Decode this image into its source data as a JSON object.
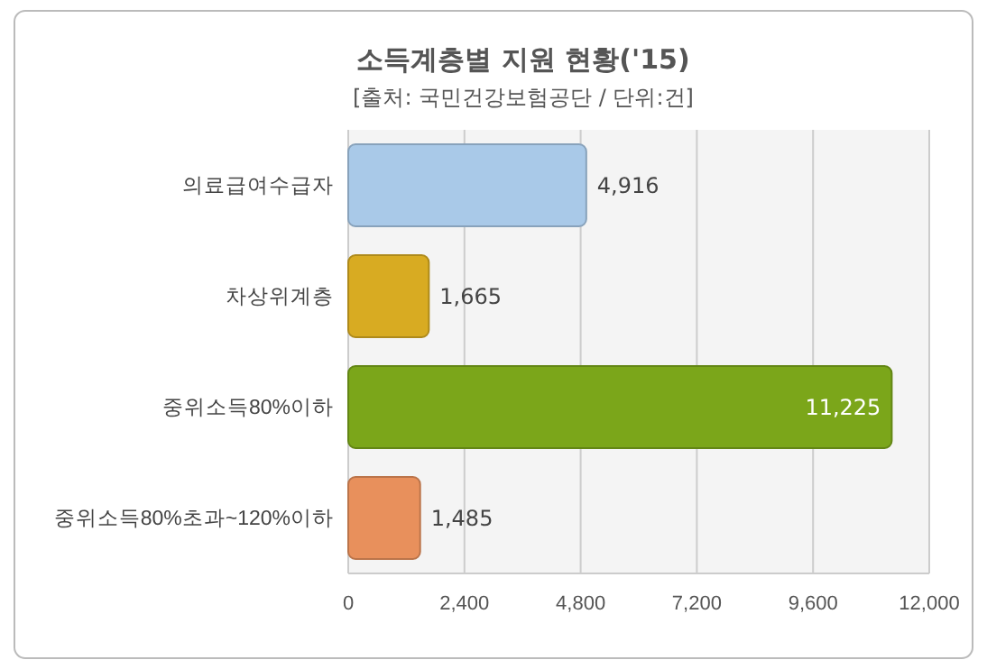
{
  "chart_data": {
    "type": "bar",
    "orientation": "horizontal",
    "title": "소득계층별 지원 현황('15)",
    "subtitle": "[출처: 국민건강보험공단 / 단위:건]",
    "categories": [
      "의료급여수급자",
      "차상위계층",
      "중위소득80%이하",
      "중위소득80%초과~120%이하"
    ],
    "values": [
      4916,
      1665,
      11225,
      1485
    ],
    "colors": [
      "#a9c9e8",
      "#d8ab22",
      "#7ba61a",
      "#e8905c"
    ],
    "value_labels": [
      "4,916",
      "1,665",
      "11,225",
      "1,485"
    ],
    "xlim": [
      0,
      12000
    ],
    "xticks": [
      0,
      {
        "value": 2400,
        "label": "2,400"
      },
      {
        "value": 4800,
        "label": "4,800"
      },
      {
        "value": 7200,
        "label": "7,200"
      },
      {
        "value": 9600,
        "label": "9,600"
      },
      {
        "value": 12000,
        "label": "12,000"
      }
    ],
    "grid": "x"
  }
}
